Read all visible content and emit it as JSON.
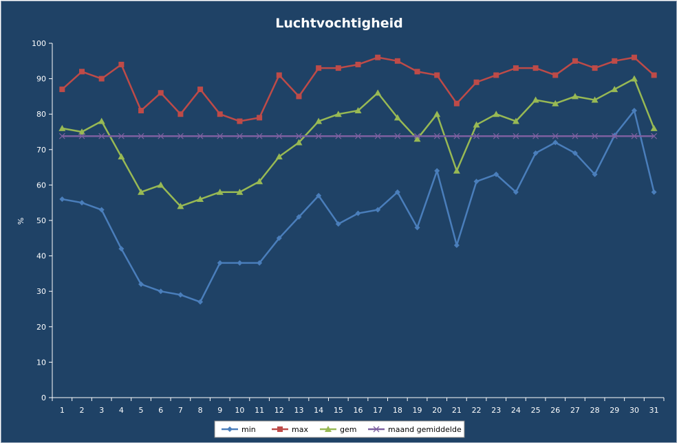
{
  "chart_data": {
    "type": "line",
    "title": "Luchtvochtigheid",
    "xlabel": "",
    "ylabel": "%",
    "ylim": [
      0,
      100
    ],
    "yticks": [
      0,
      10,
      20,
      30,
      40,
      50,
      60,
      70,
      80,
      90,
      100
    ],
    "categories": [
      "1",
      "2",
      "3",
      "4",
      "5",
      "6",
      "7",
      "8",
      "9",
      "10",
      "11",
      "12",
      "13",
      "14",
      "15",
      "16",
      "17",
      "18",
      "19",
      "20",
      "21",
      "22",
      "23",
      "24",
      "25",
      "26",
      "27",
      "28",
      "29",
      "30",
      "31"
    ],
    "grid": false,
    "legend_position": "bottom",
    "series": [
      {
        "name": "min",
        "color": "#4a7ebb",
        "marker": "diamond",
        "values": [
          56,
          55,
          53,
          42,
          32,
          30,
          29,
          27,
          38,
          38,
          38,
          45,
          51,
          57,
          49,
          52,
          53,
          58,
          48,
          64,
          43,
          61,
          63,
          58,
          69,
          72,
          69,
          63,
          74,
          81,
          58
        ]
      },
      {
        "name": "max",
        "color": "#be4b48",
        "marker": "square",
        "values": [
          87,
          92,
          90,
          94,
          81,
          86,
          80,
          87,
          80,
          78,
          79,
          91,
          85,
          93,
          93,
          94,
          96,
          95,
          92,
          91,
          83,
          89,
          91,
          93,
          93,
          91,
          95,
          93,
          95,
          96,
          91
        ]
      },
      {
        "name": "gem",
        "color": "#98b954",
        "marker": "triangle",
        "values": [
          76,
          75,
          78,
          68,
          58,
          60,
          54,
          56,
          58,
          58,
          61,
          68,
          72,
          78,
          80,
          81,
          86,
          79,
          73,
          80,
          64,
          77,
          80,
          78,
          84,
          83,
          85,
          84,
          87,
          90,
          76
        ]
      },
      {
        "name": "maand gemiddelde",
        "color": "#7d60a0",
        "marker": "x",
        "values": [
          73.8,
          73.8,
          73.8,
          73.8,
          73.8,
          73.8,
          73.8,
          73.8,
          73.8,
          73.8,
          73.8,
          73.8,
          73.8,
          73.8,
          73.8,
          73.8,
          73.8,
          73.8,
          73.8,
          73.8,
          73.8,
          73.8,
          73.8,
          73.8,
          73.8,
          73.8,
          73.8,
          73.8,
          73.8,
          73.8,
          73.8
        ]
      }
    ]
  }
}
